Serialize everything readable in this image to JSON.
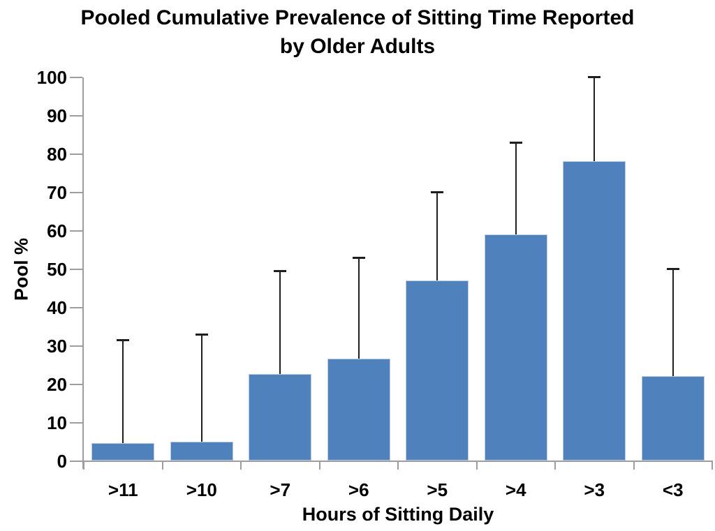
{
  "chart_data": {
    "type": "bar",
    "title": "Pooled Cumulative Prevalence of Sitting Time Reported by Older Adults",
    "title_lines": [
      "Pooled Cumulative Prevalence of Sitting Time Reported",
      "by Older Adults"
    ],
    "xlabel": "Hours of Sitting Daily",
    "ylabel": "Pool %",
    "categories": [
      ">11",
      ">10",
      ">7",
      ">6",
      ">5",
      ">4",
      ">3",
      "<3"
    ],
    "values": [
      4.5,
      5,
      22.5,
      26.5,
      47,
      59,
      78,
      22
    ],
    "error_bar_tops": [
      31.5,
      33,
      49.5,
      53,
      70,
      83,
      100,
      50
    ],
    "error_bar_direction": "upper-only",
    "ylim": [
      0,
      100
    ],
    "yticks": [
      0,
      10,
      20,
      30,
      40,
      50,
      60,
      70,
      80,
      90,
      100
    ],
    "grid": false,
    "legend": false,
    "colors": {
      "bar": "#4F81BD",
      "bar_edge": "#B7CBE3",
      "axis": "#9D9D9D",
      "error": "#1F1F1F",
      "text": "#000000",
      "background": "#FFFFFF"
    }
  }
}
